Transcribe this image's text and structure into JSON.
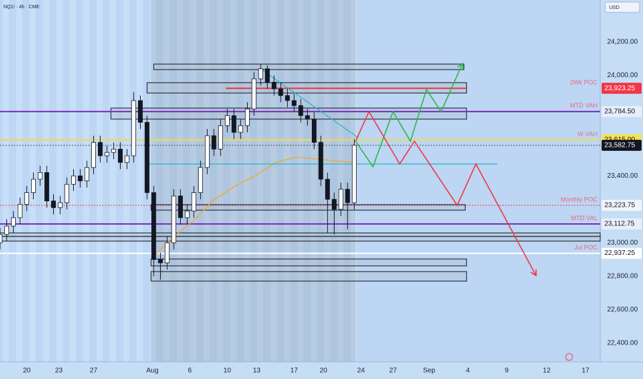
{
  "chart_data": {
    "type": "candlestick",
    "title": "NQ1! · 4h · CME",
    "currency": "USD",
    "xlim": [
      -2,
      42.9
    ],
    "ylim": [
      22289,
      24451
    ],
    "grid": false,
    "up_color": "#ffffff",
    "down_color": "#131722",
    "xticks": [
      {
        "value": 0,
        "label": "20"
      },
      {
        "value": 2.4,
        "label": "23"
      },
      {
        "value": 5,
        "label": "27"
      },
      {
        "value": 9.4,
        "label": "Aug"
      },
      {
        "value": 12.2,
        "label": "6"
      },
      {
        "value": 15,
        "label": "10"
      },
      {
        "value": 17.2,
        "label": "13"
      },
      {
        "value": 20,
        "label": "17"
      },
      {
        "value": 22.2,
        "label": "20"
      },
      {
        "value": 25,
        "label": "24"
      },
      {
        "value": 27.4,
        "label": "27"
      },
      {
        "value": 30.1,
        "label": "Sep"
      },
      {
        "value": 33,
        "label": "4"
      },
      {
        "value": 35.9,
        "label": "9"
      },
      {
        "value": 38.9,
        "label": "12"
      },
      {
        "value": 41.8,
        "label": "17"
      }
    ],
    "yticks": [
      {
        "value": 24200,
        "label": "24,200.00"
      },
      {
        "value": 24000,
        "label": "24,000.00"
      },
      {
        "value": 23400,
        "label": "23,400.00"
      },
      {
        "value": 23000,
        "label": "23,000.00"
      },
      {
        "value": 22800,
        "label": "22,800.00"
      },
      {
        "value": 22600,
        "label": "22,600.00"
      },
      {
        "value": 22400,
        "label": "22,400.00"
      }
    ],
    "x": [
      -2,
      -1.5,
      -1,
      -0.5,
      0,
      0.5,
      1,
      1.5,
      2,
      2.5,
      3,
      3.5,
      4,
      4.5,
      5,
      5.5,
      6,
      6.5,
      7,
      7.5,
      8,
      8.5,
      9,
      9.5,
      10,
      10.5,
      11,
      11.5,
      12,
      12.5,
      13,
      13.5,
      14,
      14.5,
      15,
      15.5,
      16,
      16.5,
      17,
      17.5,
      18,
      18.5,
      19,
      19.5,
      20,
      20.5,
      21,
      21.5,
      22,
      22.5,
      23,
      23.5,
      24,
      24.5
    ],
    "open": [
      23000,
      23050,
      23100,
      23150,
      23230,
      23300,
      23380,
      23420,
      23250,
      23210,
      23240,
      23350,
      23400,
      23370,
      23450,
      23600,
      23520,
      23540,
      23560,
      23480,
      23520,
      23850,
      23720,
      23300,
      22900,
      22880,
      23000,
      23280,
      23150,
      23190,
      23300,
      23450,
      23640,
      23560,
      23700,
      23760,
      23660,
      23700,
      23800,
      23980,
      24040,
      23960,
      23920,
      23880,
      23850,
      23820,
      23760,
      23740,
      23600,
      23380,
      23260,
      23200,
      23320,
      23240
    ],
    "high": [
      23090,
      23140,
      23190,
      23270,
      23340,
      23420,
      23460,
      23460,
      23290,
      23280,
      23390,
      23440,
      23440,
      23490,
      23640,
      23640,
      23580,
      23600,
      23600,
      23560,
      23900,
      23880,
      23760,
      23340,
      22940,
      23040,
      23320,
      23320,
      23230,
      23340,
      23490,
      23680,
      23680,
      23740,
      23800,
      23800,
      23740,
      23840,
      24020,
      24070,
      24060,
      24000,
      23960,
      23920,
      23890,
      23860,
      23800,
      23780,
      23640,
      23420,
      23300,
      23360,
      23360,
      23620
    ],
    "low": [
      22960,
      23010,
      23060,
      23110,
      23190,
      23260,
      23340,
      23210,
      23170,
      23170,
      23200,
      23310,
      23330,
      23330,
      23410,
      23480,
      23480,
      23500,
      23440,
      23440,
      23480,
      23680,
      23260,
      22800,
      22780,
      22840,
      22960,
      23110,
      23110,
      23150,
      23260,
      23410,
      23520,
      23520,
      23660,
      23620,
      23620,
      23660,
      23760,
      23940,
      23920,
      23880,
      23840,
      23810,
      23780,
      23720,
      23700,
      23560,
      23340,
      23060,
      23050,
      23160,
      23080,
      23200
    ],
    "close": [
      23050,
      23100,
      23150,
      23230,
      23300,
      23380,
      23420,
      23250,
      23210,
      23240,
      23350,
      23400,
      23370,
      23450,
      23600,
      23520,
      23540,
      23560,
      23480,
      23520,
      23850,
      23720,
      23300,
      22900,
      22880,
      23000,
      23280,
      23150,
      23190,
      23300,
      23450,
      23640,
      23560,
      23700,
      23760,
      23660,
      23700,
      23800,
      23980,
      24040,
      23960,
      23920,
      23880,
      23850,
      23820,
      23760,
      23740,
      23600,
      23380,
      23260,
      23200,
      23320,
      23240,
      23582.75
    ],
    "range": {
      "from": 9.3,
      "to": 24.6
    },
    "levels": [
      {
        "value": 23923.25,
        "label": "23,923.25",
        "name": "2Wk POC",
        "color": "#f23645",
        "label_bg": "#f23645",
        "label_color": "#ffffff",
        "from": 14.9,
        "to": 32.9,
        "dash": false
      },
      {
        "value": 23784.5,
        "label": "23,784.50",
        "name": "MTD VAH",
        "color": "#7b2fbe",
        "label_bg": "#e8eefa",
        "label_color": "#131722",
        "from": -2,
        "to": 42.9,
        "dash": false
      },
      {
        "value": 23615,
        "label": "23,615.00",
        "name": "W VAH",
        "color": "#f2d94a",
        "label_bg": "#f7e24d",
        "label_color": "#131722",
        "from": -2,
        "to": 42.9,
        "dash": false
      },
      {
        "value": 23582.75,
        "label": "23,582.75",
        "color": "#4a5060",
        "label_bg": "#131722",
        "label_color": "#ffffff",
        "from": -2,
        "to": 42.9,
        "dash": true
      },
      {
        "value": 23223.75,
        "label": "23,223.75",
        "name": "Monthly POC",
        "color": "#f23645",
        "label_bg": "#f0f4fb",
        "label_color": "#131722",
        "from": -2,
        "to": 42.9,
        "dash": true
      },
      {
        "value": 23112.75,
        "label": "23,112.75",
        "name": "MTD VAL",
        "color": "#7b2fbe",
        "label_bg": "#e8eefa",
        "label_color": "#131722",
        "from": -2,
        "to": 42.9,
        "dash": false
      },
      {
        "value": 22937.25,
        "label": "22,937.25",
        "name": "Jul POC",
        "color": "#ffffff",
        "label_bg": "#ffffff",
        "label_color": "#131722",
        "from": -2,
        "to": 42.9,
        "dash": false
      }
    ],
    "zones": [
      {
        "from": 9.5,
        "to": 32.7,
        "low": 24035,
        "high": 24068
      },
      {
        "from": 9.0,
        "to": 32.9,
        "low": 23895,
        "high": 23957
      },
      {
        "from": 6.3,
        "to": 32.9,
        "low": 23739,
        "high": 23805
      },
      {
        "from": 9.3,
        "to": 32.8,
        "low": 23195,
        "high": 23228
      },
      {
        "from": -2,
        "to": 42.9,
        "low": 23038,
        "high": 23059
      },
      {
        "from": -2,
        "to": 42.9,
        "low": 23010,
        "high": 23038
      },
      {
        "from": 9.3,
        "to": 32.9,
        "low": 22862,
        "high": 22903
      },
      {
        "from": 9.3,
        "to": 32.9,
        "low": 22771,
        "high": 22828
      }
    ],
    "trendlines": [
      {
        "color": "#26b5c9",
        "x": [
          17.5,
          24.8
        ],
        "y": [
          24039,
          23628
        ]
      },
      {
        "color": "#26b5c9",
        "x": [
          8.9,
          35.2
        ],
        "y": [
          23471,
          23471
        ]
      }
    ],
    "vwap": {
      "color": "#f5a623",
      "x": [
        9.6,
        10.9,
        12.5,
        14.0,
        15.6,
        17.1,
        18.7,
        20.2,
        22.3,
        24.6
      ],
      "y": [
        22927,
        23030,
        23133,
        23257,
        23339,
        23401,
        23483,
        23512,
        23496,
        23479
      ]
    },
    "projections": [
      {
        "color": "#2db84a",
        "x": [
          24.6,
          25.9,
          27.4,
          28.7,
          29.9,
          31.0,
          32.6
        ],
        "y": [
          23607,
          23455,
          23784,
          23607,
          23916,
          23784,
          24072
        ]
      },
      {
        "color": "#f23645",
        "x": [
          24.6,
          25.6,
          27.9,
          29.0,
          32.2,
          33.6,
          38.1
        ],
        "y": [
          23607,
          23784,
          23471,
          23607,
          23224,
          23471,
          22804
        ]
      }
    ]
  }
}
